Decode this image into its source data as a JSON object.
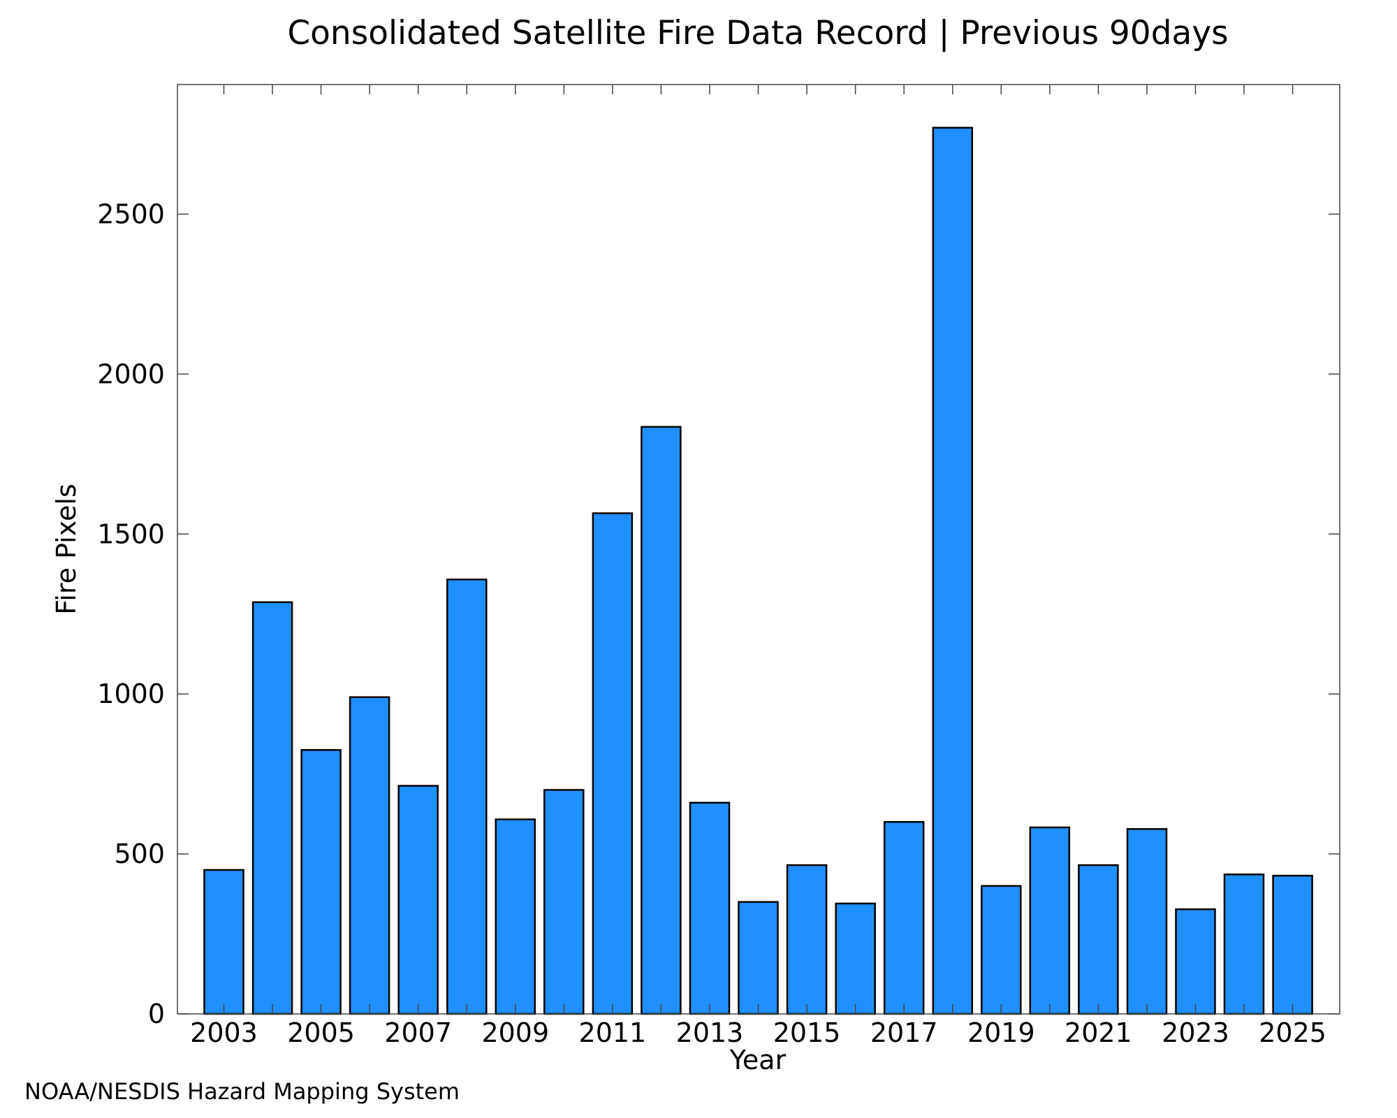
{
  "chart_data": {
    "type": "bar",
    "title": "Consolidated Satellite Fire Data Record | Previous 90days",
    "xlabel": "Year",
    "ylabel": "Fire Pixels",
    "categories": [
      "2003",
      "2004",
      "2005",
      "2006",
      "2007",
      "2008",
      "2009",
      "2010",
      "2011",
      "2012",
      "2013",
      "2014",
      "2015",
      "2016",
      "2017",
      "2018",
      "2019",
      "2020",
      "2021",
      "2022",
      "2023",
      "2024",
      "2025"
    ],
    "values": [
      450,
      1287,
      825,
      990,
      713,
      1358,
      608,
      700,
      1565,
      1835,
      660,
      350,
      465,
      345,
      600,
      2770,
      400,
      583,
      465,
      578,
      327,
      436,
      432
    ],
    "x_tick_labels": [
      "2003",
      "2005",
      "2007",
      "2009",
      "2011",
      "2013",
      "2015",
      "2017",
      "2019",
      "2021",
      "2023",
      "2025"
    ],
    "y_ticks": [
      0,
      500,
      1000,
      1500,
      2000,
      2500
    ],
    "ylim": [
      0,
      2905
    ],
    "grid": false,
    "legend": null,
    "bar_color": "#1e90ff",
    "bar_edge_color": "#000000"
  },
  "footer": {
    "credit": "NOAA/NESDIS Hazard Mapping System",
    "credit_color": "#808080"
  }
}
